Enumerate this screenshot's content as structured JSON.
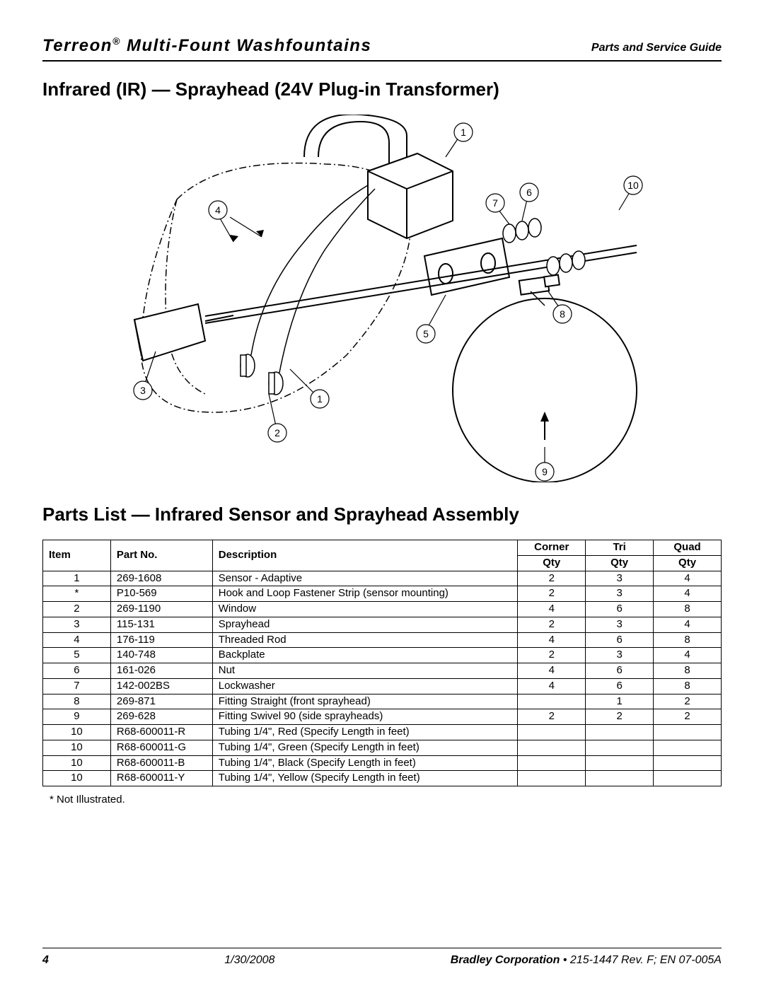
{
  "header": {
    "product_line": "Terreon",
    "product_suffix": " Multi-Fount Washfountains",
    "doc_type": "Parts and Service  Guide"
  },
  "section1_heading": "Infrared (IR) — Sprayhead (24V Plug-in Transformer)",
  "diagram": {
    "callouts": [
      "1",
      "2",
      "3",
      "4",
      "5",
      "6",
      "7",
      "8",
      "9",
      "10"
    ],
    "stroke": "#000000",
    "dash": "6 4"
  },
  "section2_heading": "Parts List — Infrared Sensor and Sprayhead Assembly",
  "table": {
    "column_groups": [
      "Corner",
      "Tri",
      "Quad"
    ],
    "columns": [
      "Item",
      "Part No.",
      "Description",
      "Qty",
      "Qty",
      "Qty"
    ],
    "rows": [
      {
        "item": "1",
        "part": "269-1608",
        "desc": "Sensor - Adaptive",
        "corner": "2",
        "tri": "3",
        "quad": "4"
      },
      {
        "item": "*",
        "part": "P10-569",
        "desc": "Hook and Loop Fastener Strip (sensor mounting)",
        "corner": "2",
        "tri": "3",
        "quad": "4"
      },
      {
        "item": "2",
        "part": "269-1190",
        "desc": "Window",
        "corner": "4",
        "tri": "6",
        "quad": "8"
      },
      {
        "item": "3",
        "part": "115-131",
        "desc": "Sprayhead",
        "corner": "2",
        "tri": "3",
        "quad": "4"
      },
      {
        "item": "4",
        "part": "176-119",
        "desc": "Threaded Rod",
        "corner": "4",
        "tri": "6",
        "quad": "8"
      },
      {
        "item": "5",
        "part": "140-748",
        "desc": "Backplate",
        "corner": "2",
        "tri": "3",
        "quad": "4"
      },
      {
        "item": "6",
        "part": "161-026",
        "desc": "Nut",
        "corner": "4",
        "tri": "6",
        "quad": "8"
      },
      {
        "item": "7",
        "part": "142-002BS",
        "desc": "Lockwasher",
        "corner": "4",
        "tri": "6",
        "quad": "8"
      },
      {
        "item": "8",
        "part": "269-871",
        "desc": "Fitting Straight (front sprayhead)",
        "corner": "",
        "tri": "1",
        "quad": "2"
      },
      {
        "item": "9",
        "part": "269-628",
        "desc": "Fitting Swivel 90  (side sprayheads)",
        "corner": "2",
        "tri": "2",
        "quad": "2"
      },
      {
        "item": "10",
        "part": "R68-600011-R",
        "desc": "Tubing 1/4\", Red (Specify Length in feet)",
        "corner": "",
        "tri": "",
        "quad": ""
      },
      {
        "item": "10",
        "part": "R68-600011-G",
        "desc": "Tubing 1/4\", Green (Specify Length in feet)",
        "corner": "",
        "tri": "",
        "quad": ""
      },
      {
        "item": "10",
        "part": "R68-600011-B",
        "desc": "Tubing 1/4\", Black (Specify Length in feet)",
        "corner": "",
        "tri": "",
        "quad": ""
      },
      {
        "item": "10",
        "part": "R68-600011-Y",
        "desc": "Tubing 1/4\", Yellow (Specify Length in feet)",
        "corner": "",
        "tri": "",
        "quad": ""
      }
    ]
  },
  "footnote": "*   Not Illustrated.",
  "footer": {
    "page": "4",
    "date": "1/30/2008",
    "company": "Bradley Corporation",
    "docref": " • 215-1447 Rev. F; EN 07-005A"
  }
}
